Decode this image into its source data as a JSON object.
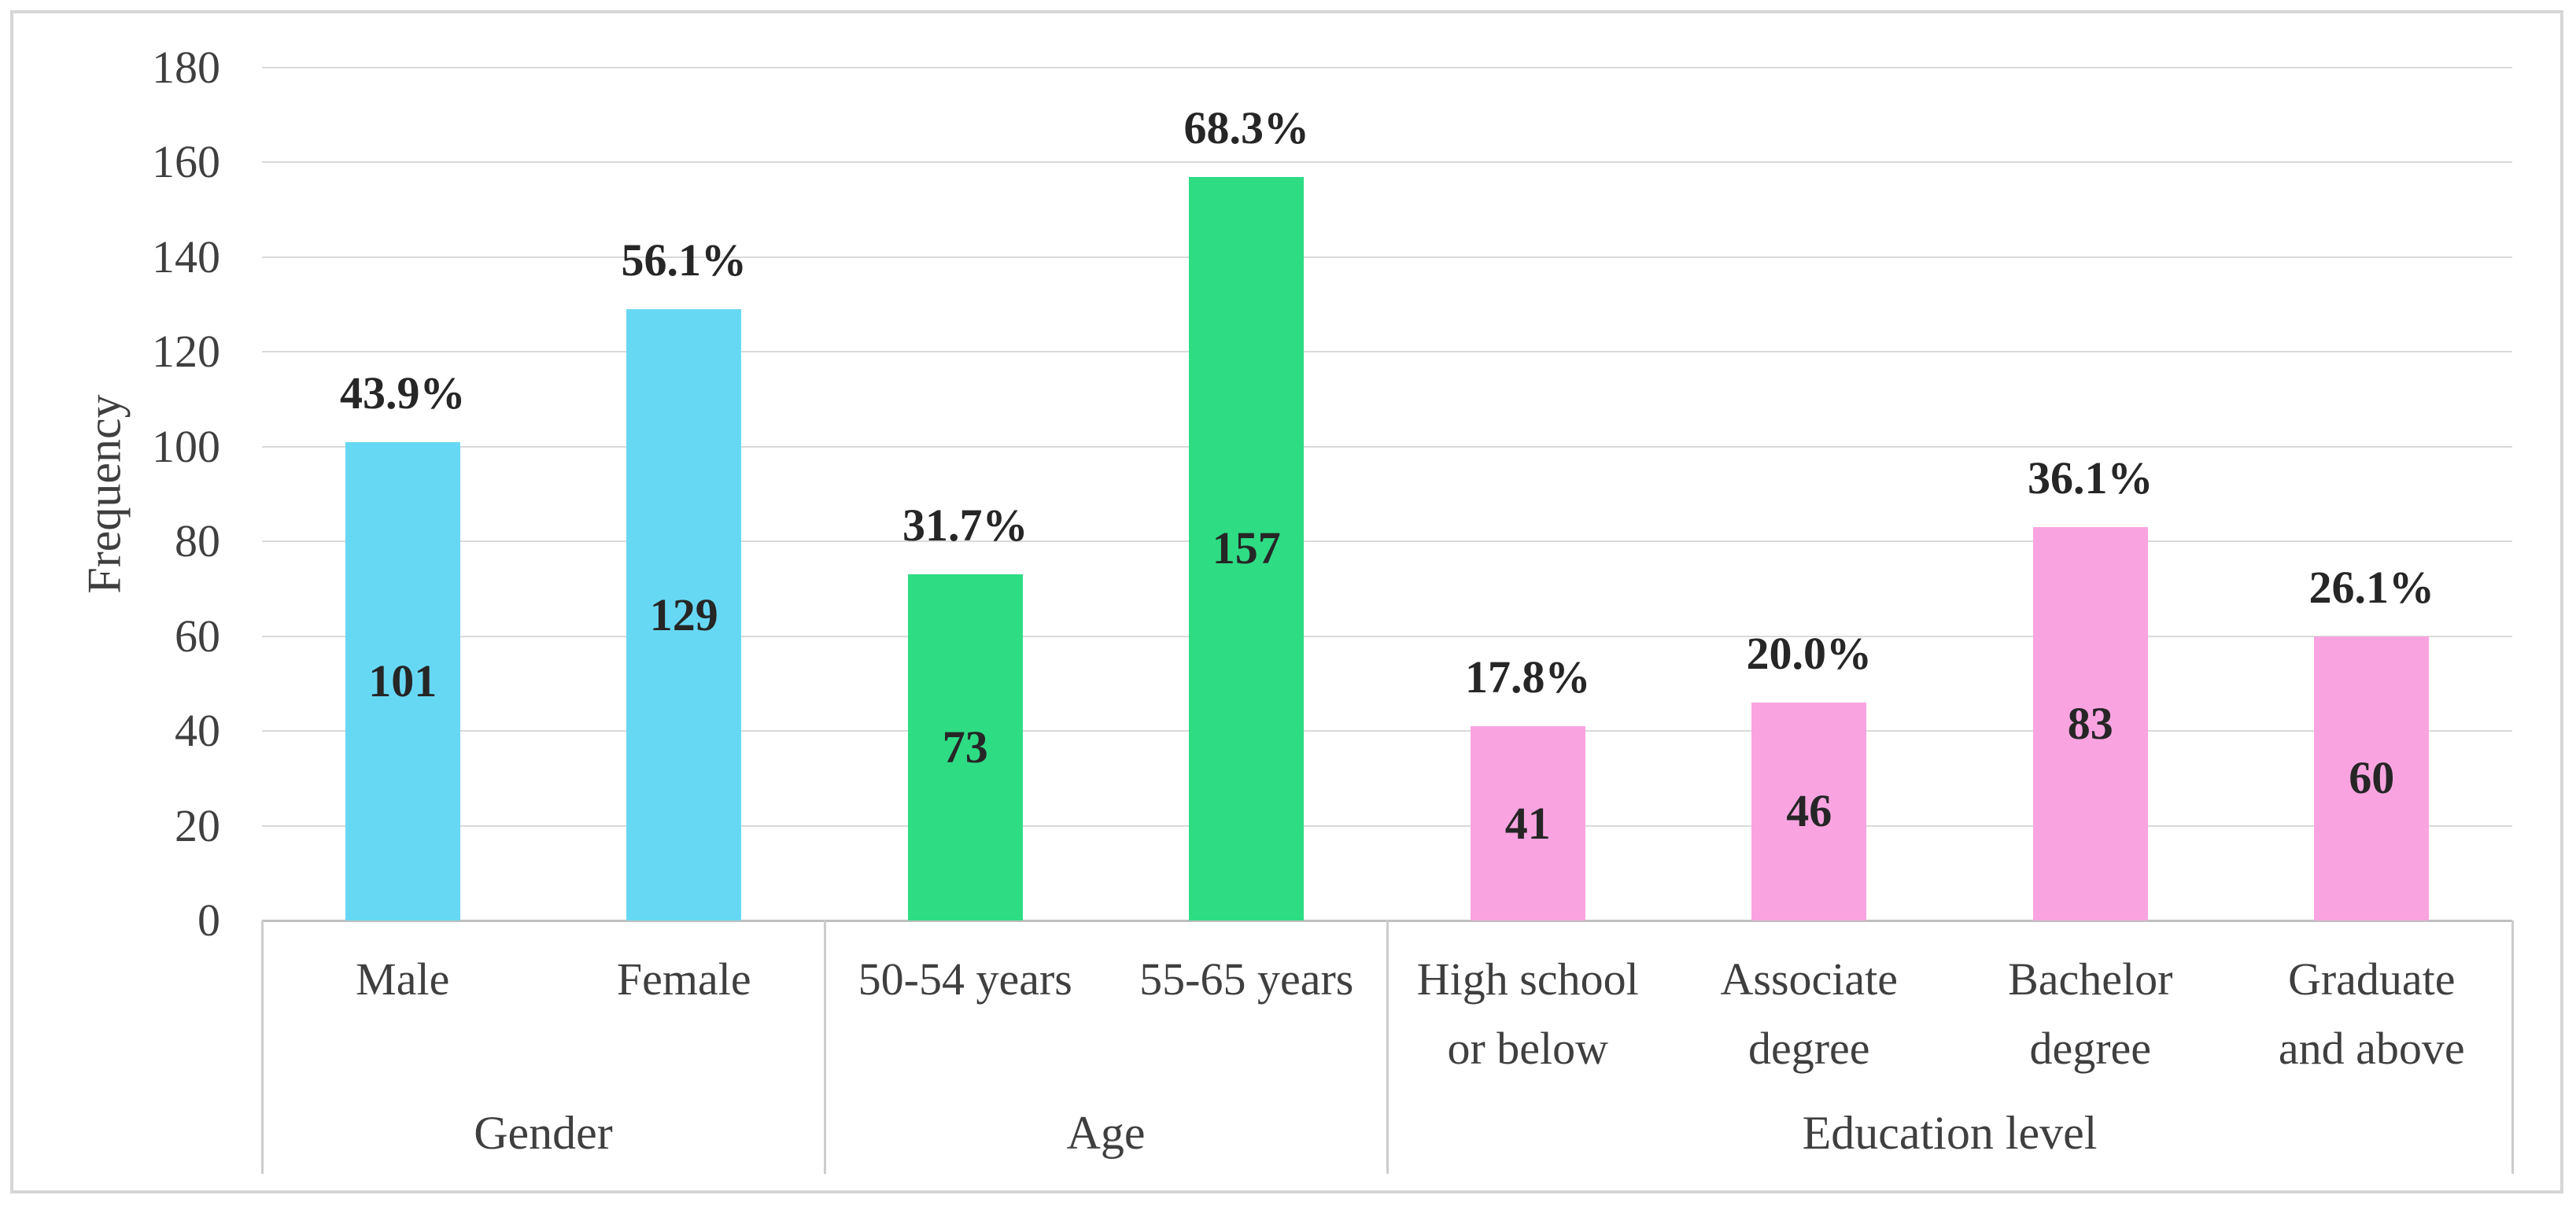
{
  "chart_data": {
    "type": "bar",
    "title": "",
    "xlabel": "",
    "ylabel": "Frequency",
    "ylim": [
      0,
      180
    ],
    "yticks": [
      0,
      20,
      40,
      60,
      80,
      100,
      120,
      140,
      160,
      180
    ],
    "grid": "horizontal",
    "legend": "none",
    "categories": [
      "Male",
      "Female",
      "50-54 years",
      "55-65 years",
      "High school or below",
      "Associate degree",
      "Bachelor degree",
      "Graduate and above"
    ],
    "values": [
      101,
      129,
      73,
      157,
      41,
      46,
      83,
      60
    ],
    "percent_labels": [
      "43.9%",
      "56.1%",
      "31.7%",
      "68.3%",
      "17.8%",
      "20.0%",
      "36.1%",
      "26.1%"
    ],
    "groups": [
      {
        "label": "Gender",
        "color": "#67d8f4",
        "items": [
          {
            "label_lines": [
              "Male"
            ],
            "value": 101,
            "pct": "43.9%"
          },
          {
            "label_lines": [
              "Female"
            ],
            "value": 129,
            "pct": "56.1%"
          }
        ]
      },
      {
        "label": "Age",
        "color": "#2edc84",
        "items": [
          {
            "label_lines": [
              "50-54 years"
            ],
            "value": 73,
            "pct": "31.7%"
          },
          {
            "label_lines": [
              "55-65 years"
            ],
            "value": 157,
            "pct": "68.3%"
          }
        ]
      },
      {
        "label": "Education level",
        "color": "#f9a4e1",
        "items": [
          {
            "label_lines": [
              "High school",
              "or below"
            ],
            "value": 41,
            "pct": "17.8%"
          },
          {
            "label_lines": [
              "Associate",
              "degree"
            ],
            "value": 46,
            "pct": "20.0%"
          },
          {
            "label_lines": [
              "Bachelor",
              "degree"
            ],
            "value": 83,
            "pct": "36.1%"
          },
          {
            "label_lines": [
              "Graduate",
              "and above"
            ],
            "value": 60,
            "pct": "26.1%"
          }
        ]
      }
    ]
  },
  "colors": {
    "bar_gender": "#67d8f4",
    "bar_age": "#2edc84",
    "bar_education": "#f9a4e1",
    "gridline": "#dadada",
    "axis_line": "#bfbfbf",
    "table_border": "#cccccc",
    "frame_border": "#d6d6d6",
    "tick_text": "#3f3f3f",
    "data_label_text": "#262626",
    "background": "#ffffff"
  }
}
